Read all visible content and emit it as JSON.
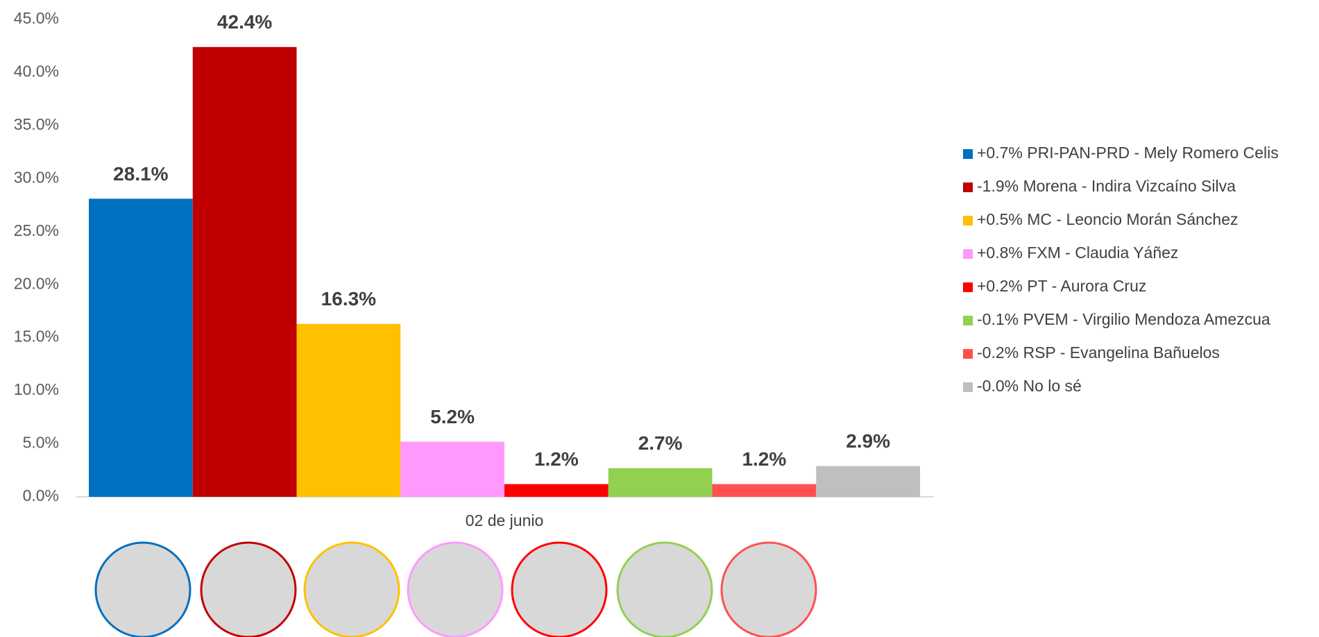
{
  "chart_data": {
    "type": "bar",
    "categories": [
      "02 de junio"
    ],
    "series": [
      {
        "name": "+0.7% PRI-PAN-PRD - Mely Romero Celis",
        "color": "#0070c0",
        "values": [
          28.1
        ],
        "value_labels": [
          "28.1%"
        ]
      },
      {
        "name": "-1.9% Morena - Indira Vizcaíno Silva",
        "color": "#c00000",
        "values": [
          42.4
        ],
        "value_labels": [
          "42.4%"
        ]
      },
      {
        "name": "+0.5% MC - Leoncio Morán Sánchez",
        "color": "#ffc000",
        "values": [
          16.3
        ],
        "value_labels": [
          "16.3%"
        ]
      },
      {
        "name": "+0.8% FXM - Claudia Yáñez",
        "color": "#ff99ff",
        "values": [
          5.2
        ],
        "value_labels": [
          "5.2%"
        ]
      },
      {
        "name": "+0.2% PT - Aurora Cruz",
        "color": "#ff0000",
        "values": [
          1.2
        ],
        "value_labels": [
          "1.2%"
        ]
      },
      {
        "name": "-0.1% PVEM - Virgilio Mendoza Amezcua",
        "color": "#92d050",
        "values": [
          2.7
        ],
        "value_labels": [
          "2.7%"
        ]
      },
      {
        "name": "-0.2% RSP - Evangelina Bañuelos",
        "color": "#ff5050",
        "values": [
          1.2
        ],
        "value_labels": [
          "1.2%"
        ]
      },
      {
        "name": "-0.0% No lo sé",
        "color": "#bfbfbf",
        "values": [
          2.9
        ],
        "value_labels": [
          "2.9%"
        ]
      }
    ],
    "ylim": [
      0,
      45
    ],
    "yticks": [
      {
        "value": 0,
        "label": "0.0%"
      },
      {
        "value": 5,
        "label": "5.0%"
      },
      {
        "value": 10,
        "label": "10.0%"
      },
      {
        "value": 15,
        "label": "15.0%"
      },
      {
        "value": 20,
        "label": "20.0%"
      },
      {
        "value": 25,
        "label": "25.0%"
      },
      {
        "value": 30,
        "label": "30.0%"
      },
      {
        "value": 35,
        "label": "35.0%"
      },
      {
        "value": 40,
        "label": "40.0%"
      },
      {
        "value": 45,
        "label": "45.0%"
      }
    ],
    "grid": false,
    "legend": "right"
  }
}
